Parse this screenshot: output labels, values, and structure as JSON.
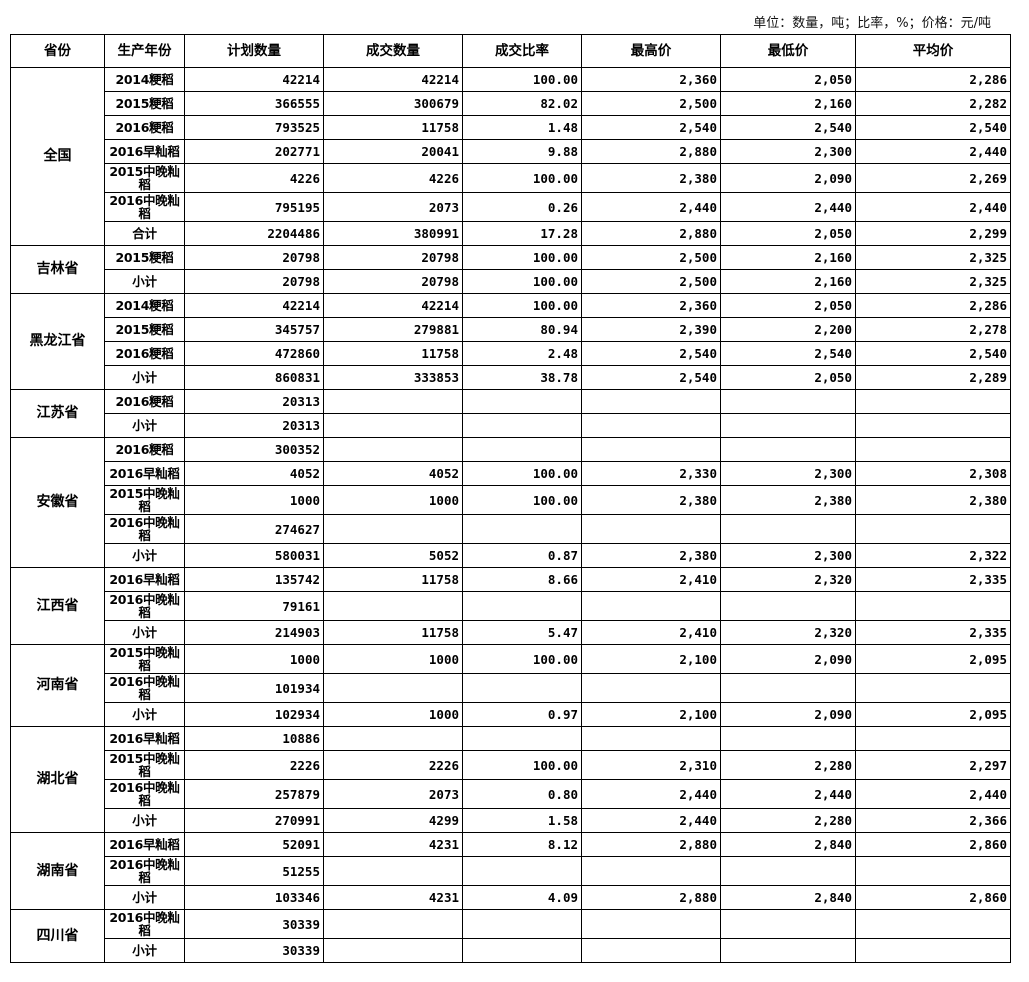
{
  "unit_note": "单位：数量，吨；比率，%；价格：元/吨",
  "headers": [
    "省份",
    "生产年份",
    "计划数量",
    "成交数量",
    "成交比率",
    "最高价",
    "最低价",
    "平均价"
  ],
  "groups": [
    {
      "province": "全国",
      "rows": [
        [
          "2014粳稻",
          "42214",
          "42214",
          "100.00",
          "2,360",
          "2,050",
          "2,286"
        ],
        [
          "2015粳稻",
          "366555",
          "300679",
          "82.02",
          "2,500",
          "2,160",
          "2,282"
        ],
        [
          "2016粳稻",
          "793525",
          "11758",
          "1.48",
          "2,540",
          "2,540",
          "2,540"
        ],
        [
          "2016早籼稻",
          "202771",
          "20041",
          "9.88",
          "2,880",
          "2,300",
          "2,440"
        ],
        [
          "2015中晚籼稻",
          "4226",
          "4226",
          "100.00",
          "2,380",
          "2,090",
          "2,269"
        ],
        [
          "2016中晚籼稻",
          "795195",
          "2073",
          "0.26",
          "2,440",
          "2,440",
          "2,440"
        ],
        [
          "合计",
          "2204486",
          "380991",
          "17.28",
          "2,880",
          "2,050",
          "2,299"
        ]
      ]
    },
    {
      "province": "吉林省",
      "rows": [
        [
          "2015粳稻",
          "20798",
          "20798",
          "100.00",
          "2,500",
          "2,160",
          "2,325"
        ],
        [
          "小计",
          "20798",
          "20798",
          "100.00",
          "2,500",
          "2,160",
          "2,325"
        ]
      ]
    },
    {
      "province": "黑龙江省",
      "rows": [
        [
          "2014粳稻",
          "42214",
          "42214",
          "100.00",
          "2,360",
          "2,050",
          "2,286"
        ],
        [
          "2015粳稻",
          "345757",
          "279881",
          "80.94",
          "2,390",
          "2,200",
          "2,278"
        ],
        [
          "2016粳稻",
          "472860",
          "11758",
          "2.48",
          "2,540",
          "2,540",
          "2,540"
        ],
        [
          "小计",
          "860831",
          "333853",
          "38.78",
          "2,540",
          "2,050",
          "2,289"
        ]
      ]
    },
    {
      "province": "江苏省",
      "rows": [
        [
          "2016粳稻",
          "20313",
          "",
          "",
          "",
          "",
          ""
        ],
        [
          "小计",
          "20313",
          "",
          "",
          "",
          "",
          ""
        ]
      ]
    },
    {
      "province": "安徽省",
      "rows": [
        [
          "2016粳稻",
          "300352",
          "",
          "",
          "",
          "",
          ""
        ],
        [
          "2016早籼稻",
          "4052",
          "4052",
          "100.00",
          "2,330",
          "2,300",
          "2,308"
        ],
        [
          "2015中晚籼稻",
          "1000",
          "1000",
          "100.00",
          "2,380",
          "2,380",
          "2,380"
        ],
        [
          "2016中晚籼稻",
          "274627",
          "",
          "",
          "",
          "",
          ""
        ],
        [
          "小计",
          "580031",
          "5052",
          "0.87",
          "2,380",
          "2,300",
          "2,322"
        ]
      ]
    },
    {
      "province": "江西省",
      "rows": [
        [
          "2016早籼稻",
          "135742",
          "11758",
          "8.66",
          "2,410",
          "2,320",
          "2,335"
        ],
        [
          "2016中晚籼稻",
          "79161",
          "",
          "",
          "",
          "",
          ""
        ],
        [
          "小计",
          "214903",
          "11758",
          "5.47",
          "2,410",
          "2,320",
          "2,335"
        ]
      ]
    },
    {
      "province": "河南省",
      "rows": [
        [
          "2015中晚籼稻",
          "1000",
          "1000",
          "100.00",
          "2,100",
          "2,090",
          "2,095"
        ],
        [
          "2016中晚籼稻",
          "101934",
          "",
          "",
          "",
          "",
          ""
        ],
        [
          "小计",
          "102934",
          "1000",
          "0.97",
          "2,100",
          "2,090",
          "2,095"
        ]
      ]
    },
    {
      "province": "湖北省",
      "rows": [
        [
          "2016早籼稻",
          "10886",
          "",
          "",
          "",
          "",
          ""
        ],
        [
          "2015中晚籼稻",
          "2226",
          "2226",
          "100.00",
          "2,310",
          "2,280",
          "2,297"
        ],
        [
          "2016中晚籼稻",
          "257879",
          "2073",
          "0.80",
          "2,440",
          "2,440",
          "2,440"
        ],
        [
          "小计",
          "270991",
          "4299",
          "1.58",
          "2,440",
          "2,280",
          "2,366"
        ]
      ]
    },
    {
      "province": "湖南省",
      "rows": [
        [
          "2016早籼稻",
          "52091",
          "4231",
          "8.12",
          "2,880",
          "2,840",
          "2,860"
        ],
        [
          "2016中晚籼稻",
          "51255",
          "",
          "",
          "",
          "",
          ""
        ],
        [
          "小计",
          "103346",
          "4231",
          "4.09",
          "2,880",
          "2,840",
          "2,860"
        ]
      ]
    },
    {
      "province": "四川省",
      "rows": [
        [
          "2016中晚籼稻",
          "30339",
          "",
          "",
          "",
          "",
          ""
        ],
        [
          "小计",
          "30339",
          "",
          "",
          "",
          "",
          ""
        ]
      ]
    }
  ]
}
